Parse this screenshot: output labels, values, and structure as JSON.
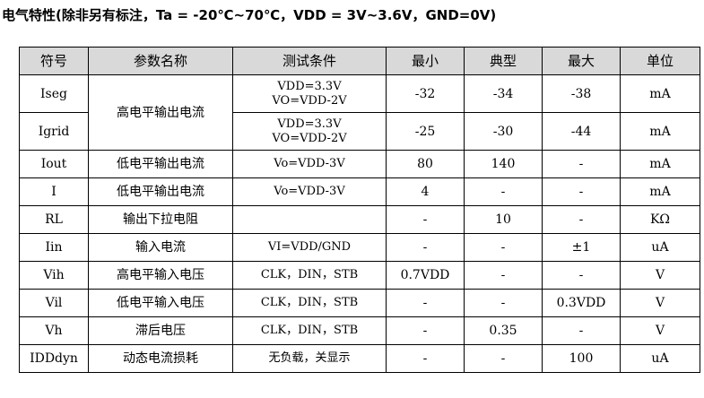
{
  "title": "电气特性(除非另有标注，Ta = -20℃~70℃，VDD = 3V~3.6V，GND=0V)",
  "headers": [
    "符号",
    "参数名称",
    "测试条件",
    "最小",
    "典型",
    "最大",
    "单位"
  ],
  "shared_name": "高电平输出电流",
  "rows": [
    {
      "symbol": "Iseg",
      "cond": [
        "VDD=3.3V",
        "VO=VDD-2V"
      ],
      "min": "-32",
      "typ": "-34",
      "max": "-38",
      "unit": "mA"
    },
    {
      "symbol": "Igrid",
      "cond": [
        "VDD=3.3V",
        "VO=VDD-2V"
      ],
      "min": "-25",
      "typ": "-30",
      "max": "-44",
      "unit": "mA"
    },
    {
      "symbol": "Iout",
      "name": "低电平输出电流",
      "cond": "Vo=VDD-3V",
      "min": "80",
      "typ": "140",
      "max": "-",
      "unit": "mA"
    },
    {
      "symbol": "I",
      "name": "低电平输出电流",
      "cond": "Vo=VDD-3V",
      "min": "4",
      "typ": "-",
      "max": "-",
      "unit": "mA"
    },
    {
      "symbol": "RL",
      "name": "输出下拉电阻",
      "cond": "",
      "min": "-",
      "typ": "10",
      "max": "-",
      "unit": "KΩ"
    },
    {
      "symbol": "Iin",
      "name": "输入电流",
      "cond": "VI=VDD/GND",
      "min": "-",
      "typ": "-",
      "max": "±1",
      "unit": "uA"
    },
    {
      "symbol": "Vih",
      "name": "高电平输入电压",
      "cond": "CLK，DIN，STB",
      "min": "0.7VDD",
      "typ": "-",
      "max": "-",
      "unit": "V"
    },
    {
      "symbol": "Vil",
      "name": "低电平输入电压",
      "cond": "CLK，DIN，STB",
      "min": "-",
      "typ": "-",
      "max": "0.3VDD",
      "unit": "V"
    },
    {
      "symbol": "Vh",
      "name": "滞后电压",
      "cond": "CLK，DIN，STB",
      "min": "-",
      "typ": "0.35",
      "max": "-",
      "unit": "V"
    },
    {
      "symbol": "IDDdyn",
      "name": "动态电流损耗",
      "cond": "无负载，关显示",
      "min": "-",
      "typ": "-",
      "max": "100",
      "unit": "uA"
    }
  ]
}
